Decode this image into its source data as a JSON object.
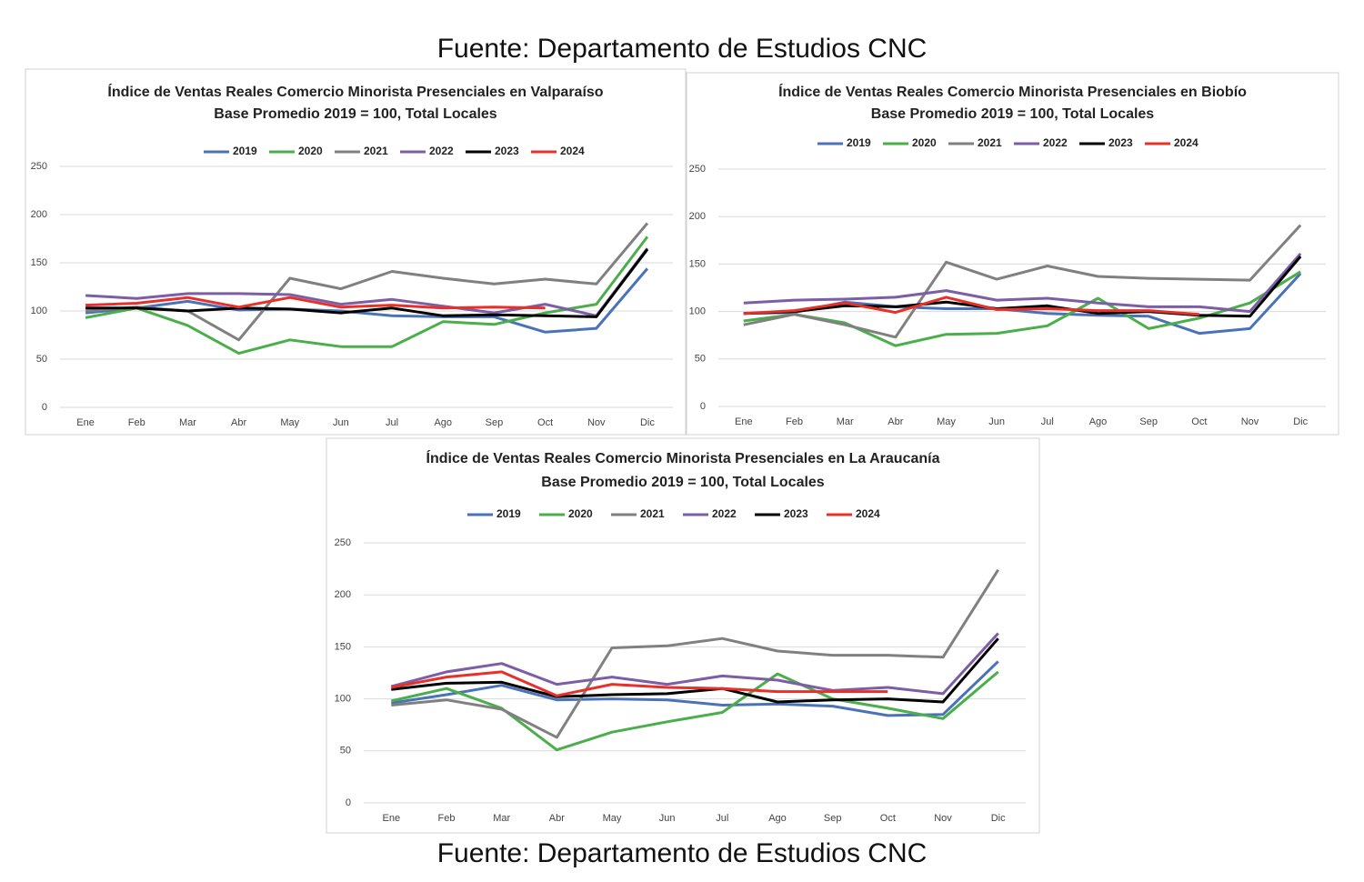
{
  "source_top": "Fuente: Departamento de Estudios CNC",
  "source_bottom": "Fuente: Departamento de Estudios CNC",
  "chart_data": [
    {
      "type": "line",
      "title": "Índice de Ventas Reales Comercio Minorista Presenciales en Valparaíso",
      "subtitle": "Base Promedio 2019 = 100, Total Locales",
      "categories": [
        "Ene",
        "Feb",
        "Mar",
        "Abr",
        "May",
        "Jun",
        "Jul",
        "Ago",
        "Sep",
        "Oct",
        "Nov",
        "Dic"
      ],
      "ylim": [
        0,
        250
      ],
      "yticks": [
        0,
        50,
        100,
        150,
        200,
        250
      ],
      "grid": true,
      "legend": "top",
      "series": [
        {
          "name": "2019",
          "color": "#4a72b8",
          "values": [
            98,
            103,
            110,
            101,
            102,
            100,
            95,
            94,
            94,
            78,
            82,
            144
          ]
        },
        {
          "name": "2020",
          "color": "#4aae4a",
          "values": [
            93,
            103,
            85,
            56,
            70,
            63,
            63,
            89,
            86,
            98,
            107,
            177
          ]
        },
        {
          "name": "2021",
          "color": "#808080",
          "values": [
            100,
            104,
            100,
            70,
            134,
            123,
            141,
            134,
            128,
            133,
            128,
            191
          ]
        },
        {
          "name": "2022",
          "color": "#7b5ea6",
          "values": [
            116,
            113,
            118,
            118,
            117,
            107,
            112,
            105,
            98,
            107,
            95,
            165
          ]
        },
        {
          "name": "2023",
          "color": "#000000",
          "values": [
            103,
            103,
            100,
            103,
            102,
            98,
            103,
            95,
            96,
            95,
            94,
            164
          ]
        },
        {
          "name": "2024",
          "color": "#e8302a",
          "values": [
            106,
            108,
            114,
            104,
            114,
            104,
            106,
            103,
            104,
            103,
            null,
            null
          ]
        }
      ]
    },
    {
      "type": "line",
      "title": "Índice de Ventas Reales Comercio Minorista Presenciales en Biobío",
      "subtitle": "Base Promedio 2019 = 100, Total Locales",
      "categories": [
        "Ene",
        "Feb",
        "Mar",
        "Abr",
        "May",
        "Jun",
        "Jul",
        "Ago",
        "Sep",
        "Oct",
        "Nov",
        "Dic"
      ],
      "ylim": [
        0,
        250
      ],
      "yticks": [
        0,
        50,
        100,
        150,
        200,
        250
      ],
      "grid": true,
      "legend": "top",
      "series": [
        {
          "name": "2019",
          "color": "#4a72b8",
          "values": [
            98,
            99,
            110,
            105,
            103,
            103,
            98,
            96,
            95,
            77,
            82,
            140
          ]
        },
        {
          "name": "2020",
          "color": "#4aae4a",
          "values": [
            90,
            97,
            88,
            64,
            76,
            77,
            85,
            114,
            82,
            93,
            109,
            142
          ]
        },
        {
          "name": "2021",
          "color": "#808080",
          "values": [
            86,
            97,
            86,
            73,
            152,
            134,
            148,
            137,
            135,
            134,
            133,
            191
          ]
        },
        {
          "name": "2022",
          "color": "#7b5ea6",
          "values": [
            109,
            112,
            113,
            115,
            122,
            112,
            114,
            109,
            105,
            105,
            100,
            161
          ]
        },
        {
          "name": "2023",
          "color": "#000000",
          "values": [
            98,
            100,
            106,
            105,
            110,
            103,
            106,
            98,
            100,
            96,
            95,
            158
          ]
        },
        {
          "name": "2024",
          "color": "#e8302a",
          "values": [
            98,
            101,
            109,
            99,
            115,
            102,
            103,
            101,
            101,
            97,
            null,
            null
          ]
        }
      ]
    },
    {
      "type": "line",
      "title": "Índice de Ventas Reales Comercio Minorista Presenciales en La Araucanía",
      "subtitle": "Base Promedio 2019 = 100, Total Locales",
      "categories": [
        "Ene",
        "Feb",
        "Mar",
        "Abr",
        "May",
        "Jun",
        "Jul",
        "Ago",
        "Sep",
        "Oct",
        "Nov",
        "Dic"
      ],
      "ylim": [
        0,
        250
      ],
      "yticks": [
        0,
        50,
        100,
        150,
        200,
        250
      ],
      "grid": true,
      "legend": "top",
      "series": [
        {
          "name": "2019",
          "color": "#4a72b8",
          "values": [
            96,
            104,
            113,
            99,
            100,
            99,
            94,
            95,
            93,
            84,
            85,
            136
          ]
        },
        {
          "name": "2020",
          "color": "#4aae4a",
          "values": [
            98,
            110,
            91,
            51,
            68,
            78,
            87,
            124,
            100,
            91,
            81,
            126
          ]
        },
        {
          "name": "2021",
          "color": "#808080",
          "values": [
            94,
            99,
            90,
            63,
            149,
            151,
            158,
            146,
            142,
            142,
            140,
            224
          ]
        },
        {
          "name": "2022",
          "color": "#7b5ea6",
          "values": [
            112,
            126,
            134,
            114,
            121,
            114,
            122,
            118,
            108,
            111,
            105,
            163
          ]
        },
        {
          "name": "2023",
          "color": "#000000",
          "values": [
            109,
            115,
            116,
            102,
            104,
            105,
            110,
            97,
            99,
            100,
            97,
            158
          ]
        },
        {
          "name": "2024",
          "color": "#e8302a",
          "values": [
            111,
            121,
            126,
            103,
            114,
            111,
            110,
            107,
            107,
            107,
            null,
            null
          ]
        }
      ]
    }
  ]
}
